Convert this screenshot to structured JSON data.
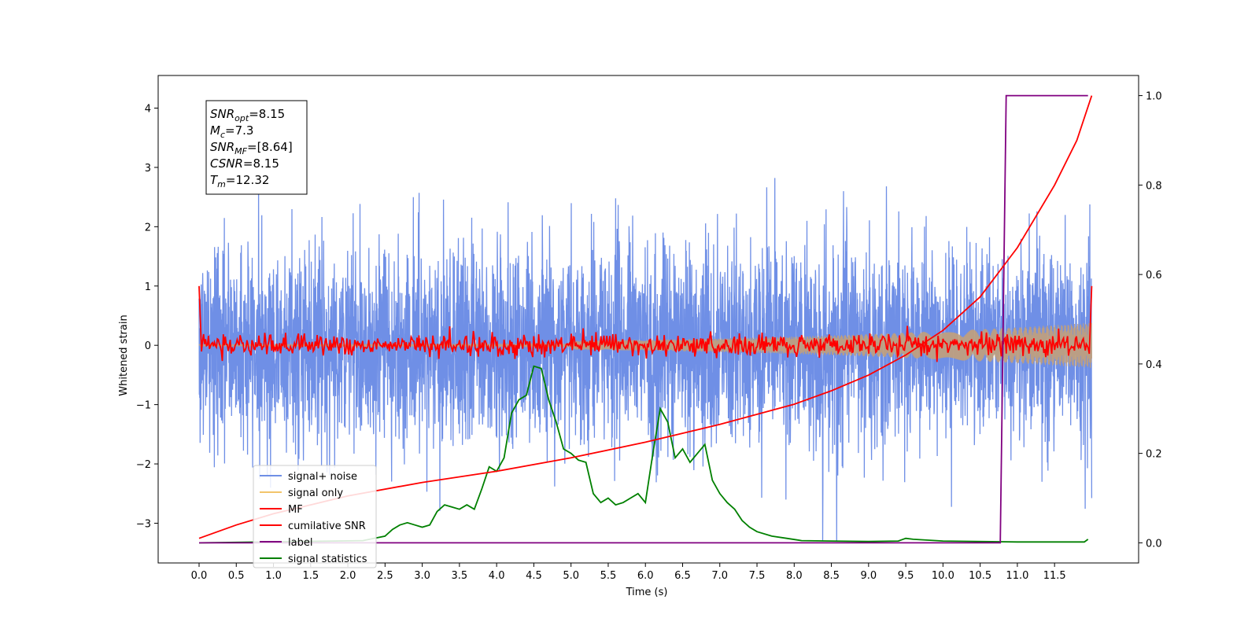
{
  "chart_data": {
    "type": "line",
    "xlabel": "Time (s)",
    "ylabel": "Whitened strain",
    "xlim": [
      -0.55,
      12.63
    ],
    "ylim": [
      -3.67,
      4.55
    ],
    "y2lim": [
      -0.045,
      1.045
    ],
    "xticks": [
      "0.0",
      "0.5",
      "1.0",
      "1.5",
      "2.0",
      "2.5",
      "3.0",
      "3.5",
      "4.0",
      "4.5",
      "5.0",
      "5.5",
      "6.0",
      "6.5",
      "7.0",
      "7.5",
      "8.0",
      "8.5",
      "9.0",
      "9.5",
      "10.0",
      "10.5",
      "11.0",
      "11.5"
    ],
    "yticks": [
      "−3",
      "−2",
      "−1",
      "0",
      "1",
      "2",
      "3",
      "4"
    ],
    "y2ticks": [
      "0.0",
      "0.2",
      "0.4",
      "0.6",
      "0.8",
      "1.0"
    ],
    "legend_placement": "lower-left",
    "info_box": [
      {
        "base": "SNR",
        "sub": "opt",
        "rest": "=8.15"
      },
      {
        "base": "M",
        "sub": "c",
        "rest": "=7.3"
      },
      {
        "base": "SNR",
        "sub": "MF",
        "rest": "=[8.64]"
      },
      {
        "base": "CSNR",
        "sub": "",
        "rest": "=8.15"
      },
      {
        "base": "T",
        "sub": "m",
        "rest": "=12.32"
      }
    ],
    "series": [
      {
        "name": "signal+ noise",
        "color": "#6f8fe6",
        "axis": "left",
        "kind": "noise",
        "std": 0.85,
        "range": [
          0.0,
          12.0
        ]
      },
      {
        "name": "signal only",
        "color": "#f2c46b",
        "axis": "left",
        "kind": "chirp",
        "amp_start": 0.05,
        "amp_end": 0.38,
        "range": [
          0.0,
          12.0
        ]
      },
      {
        "name": "MF",
        "color": "#ff0000",
        "axis": "left",
        "kind": "mf",
        "std": 0.09,
        "start_value": 1.0,
        "end_value": 1.0
      },
      {
        "name": "cumilative SNR",
        "color": "#ff0000",
        "axis": "right",
        "x": [
          0.0,
          0.5,
          1.0,
          1.5,
          2.0,
          3.0,
          4.0,
          5.0,
          6.0,
          7.0,
          8.0,
          8.5,
          9.0,
          9.5,
          10.0,
          10.5,
          11.0,
          11.5,
          11.8,
          12.0
        ],
        "y": [
          0.01,
          0.04,
          0.065,
          0.085,
          0.105,
          0.135,
          0.16,
          0.19,
          0.225,
          0.265,
          0.31,
          0.34,
          0.375,
          0.42,
          0.475,
          0.55,
          0.66,
          0.8,
          0.9,
          1.0
        ]
      },
      {
        "name": "label",
        "color": "#800080",
        "axis": "right",
        "x": [
          0.0,
          10.77,
          10.85,
          11.95
        ],
        "y": [
          0.0,
          0.0,
          1.0,
          1.0
        ]
      },
      {
        "name": "signal statistics",
        "color": "#008000",
        "axis": "right",
        "x": [
          0.0,
          2.2,
          2.5,
          2.6,
          2.7,
          2.8,
          2.9,
          3.0,
          3.1,
          3.2,
          3.3,
          3.4,
          3.5,
          3.6,
          3.7,
          3.8,
          3.9,
          4.0,
          4.1,
          4.2,
          4.3,
          4.4,
          4.5,
          4.6,
          4.7,
          4.8,
          4.9,
          5.0,
          5.1,
          5.2,
          5.3,
          5.4,
          5.5,
          5.6,
          5.7,
          5.8,
          5.9,
          6.0,
          6.1,
          6.2,
          6.3,
          6.4,
          6.5,
          6.6,
          6.7,
          6.8,
          6.9,
          7.0,
          7.1,
          7.2,
          7.3,
          7.4,
          7.5,
          7.7,
          7.9,
          8.1,
          8.5,
          9.0,
          9.4,
          9.5,
          9.6,
          10.0,
          11.0,
          11.9,
          11.95
        ],
        "y": [
          0.0,
          0.005,
          0.015,
          0.03,
          0.04,
          0.045,
          0.04,
          0.035,
          0.04,
          0.07,
          0.085,
          0.08,
          0.075,
          0.085,
          0.075,
          0.12,
          0.17,
          0.16,
          0.19,
          0.29,
          0.32,
          0.33,
          0.395,
          0.39,
          0.32,
          0.27,
          0.21,
          0.2,
          0.185,
          0.18,
          0.11,
          0.09,
          0.1,
          0.085,
          0.09,
          0.1,
          0.11,
          0.09,
          0.2,
          0.3,
          0.27,
          0.19,
          0.21,
          0.18,
          0.2,
          0.22,
          0.14,
          0.11,
          0.09,
          0.075,
          0.05,
          0.035,
          0.025,
          0.015,
          0.01,
          0.005,
          0.004,
          0.003,
          0.004,
          0.01,
          0.008,
          0.004,
          0.002,
          0.002,
          0.008
        ]
      }
    ]
  }
}
